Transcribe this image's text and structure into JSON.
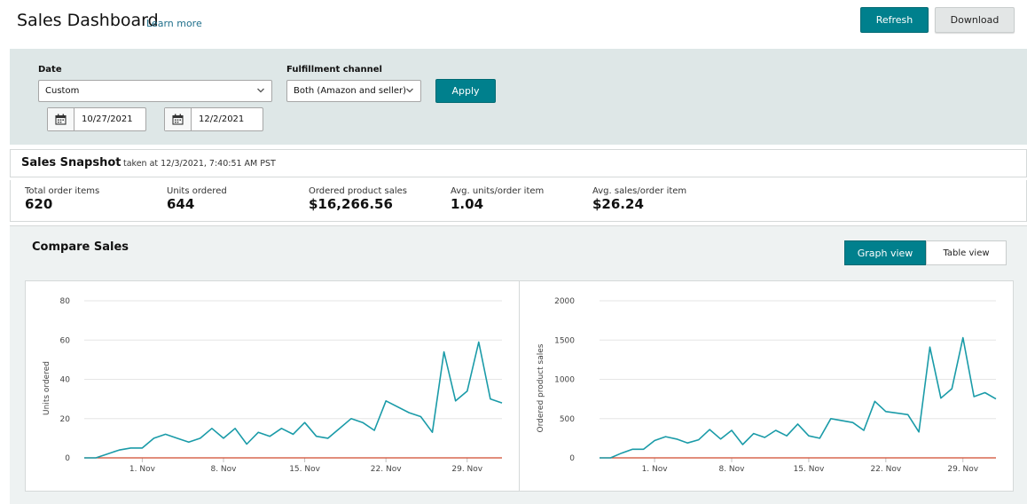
{
  "header": {
    "title": "Sales Dashboard",
    "learn_more": "Learn more",
    "refresh_label": "Refresh",
    "download_label": "Download"
  },
  "filters": {
    "date_label": "Date",
    "date_select": "Custom",
    "start_date": "10/27/2021",
    "end_date": "12/2/2021",
    "channel_label": "Fulfillment channel",
    "channel_select": "Both (Amazon and seller)",
    "apply_label": "Apply"
  },
  "snapshot": {
    "title": "Sales Snapshot",
    "taken_at": "taken at 12/3/2021, 7:40:51 AM PST",
    "metrics": [
      {
        "label": "Total order items",
        "value": "620"
      },
      {
        "label": "Units ordered",
        "value": "644"
      },
      {
        "label": "Ordered product sales",
        "value": "$16,266.56"
      },
      {
        "label": "Avg. units/order item",
        "value": "1.04"
      },
      {
        "label": "Avg. sales/order item",
        "value": "$26.24"
      }
    ]
  },
  "compare": {
    "title": "Compare Sales",
    "graph_view_label": "Graph view",
    "table_view_label": "Table view"
  },
  "colors": {
    "accent": "#00808d",
    "series_line": "#1a9ba8",
    "baseline": "#d04a2f"
  },
  "chart_data": [
    {
      "type": "line",
      "ylabel": "Units ordered",
      "ylim": [
        0,
        80
      ],
      "yticks": [
        0,
        20,
        40,
        60,
        80
      ],
      "xticks": [
        {
          "date": "2021-11-01",
          "label": "1. Nov"
        },
        {
          "date": "2021-11-08",
          "label": "8. Nov"
        },
        {
          "date": "2021-11-15",
          "label": "15. Nov"
        },
        {
          "date": "2021-11-22",
          "label": "22. Nov"
        },
        {
          "date": "2021-11-29",
          "label": "29. Nov"
        }
      ],
      "x_range": [
        "2021-10-27",
        "2021-12-02"
      ],
      "grid": true,
      "series": [
        {
          "x": [
            "2021-10-27",
            "2021-10-28",
            "2021-10-29",
            "2021-10-30",
            "2021-10-31",
            "2021-11-01",
            "2021-11-02",
            "2021-11-03",
            "2021-11-04",
            "2021-11-05",
            "2021-11-06",
            "2021-11-07",
            "2021-11-08",
            "2021-11-09",
            "2021-11-10",
            "2021-11-11",
            "2021-11-12",
            "2021-11-13",
            "2021-11-14",
            "2021-11-15",
            "2021-11-16",
            "2021-11-17",
            "2021-11-19",
            "2021-11-20",
            "2021-11-21",
            "2021-11-22",
            "2021-11-24",
            "2021-11-25",
            "2021-11-26",
            "2021-11-27",
            "2021-11-28",
            "2021-11-29",
            "2021-11-30",
            "2021-12-01",
            "2021-12-02"
          ],
          "values": [
            0,
            0,
            2,
            4,
            5,
            5,
            10,
            12,
            10,
            8,
            10,
            15,
            10,
            15,
            7,
            13,
            11,
            15,
            12,
            18,
            11,
            10,
            20,
            18,
            14,
            29,
            23,
            21,
            13,
            54,
            29,
            34,
            59,
            30,
            28
          ]
        },
        {
          "x": [
            "2021-10-27",
            "2021-12-02"
          ],
          "values": [
            0,
            0
          ]
        }
      ]
    },
    {
      "type": "line",
      "ylabel": "Ordered product sales",
      "ylim": [
        0,
        2000
      ],
      "yticks": [
        0,
        500,
        1000,
        1500,
        2000
      ],
      "xticks": [
        {
          "date": "2021-11-01",
          "label": "1. Nov"
        },
        {
          "date": "2021-11-08",
          "label": "8. Nov"
        },
        {
          "date": "2021-11-15",
          "label": "15. Nov"
        },
        {
          "date": "2021-11-22",
          "label": "22. Nov"
        },
        {
          "date": "2021-11-29",
          "label": "29. Nov"
        }
      ],
      "x_range": [
        "2021-10-27",
        "2021-12-02"
      ],
      "grid": true,
      "series": [
        {
          "x": [
            "2021-10-27",
            "2021-10-28",
            "2021-10-29",
            "2021-10-30",
            "2021-10-31",
            "2021-11-01",
            "2021-11-02",
            "2021-11-03",
            "2021-11-04",
            "2021-11-05",
            "2021-11-06",
            "2021-11-07",
            "2021-11-08",
            "2021-11-09",
            "2021-11-10",
            "2021-11-11",
            "2021-11-12",
            "2021-11-13",
            "2021-11-14",
            "2021-11-15",
            "2021-11-16",
            "2021-11-17",
            "2021-11-19",
            "2021-11-20",
            "2021-11-21",
            "2021-11-22",
            "2021-11-24",
            "2021-11-25",
            "2021-11-26",
            "2021-11-27",
            "2021-11-28",
            "2021-11-29",
            "2021-11-30",
            "2021-12-01",
            "2021-12-02"
          ],
          "values": [
            0,
            0,
            60,
            110,
            110,
            220,
            270,
            240,
            190,
            230,
            360,
            240,
            350,
            170,
            310,
            260,
            350,
            280,
            430,
            280,
            250,
            500,
            450,
            350,
            720,
            590,
            550,
            330,
            1410,
            760,
            880,
            1530,
            780,
            830,
            750
          ]
        },
        {
          "x": [
            "2021-10-27",
            "2021-12-02"
          ],
          "values": [
            0,
            0
          ]
        }
      ]
    }
  ]
}
